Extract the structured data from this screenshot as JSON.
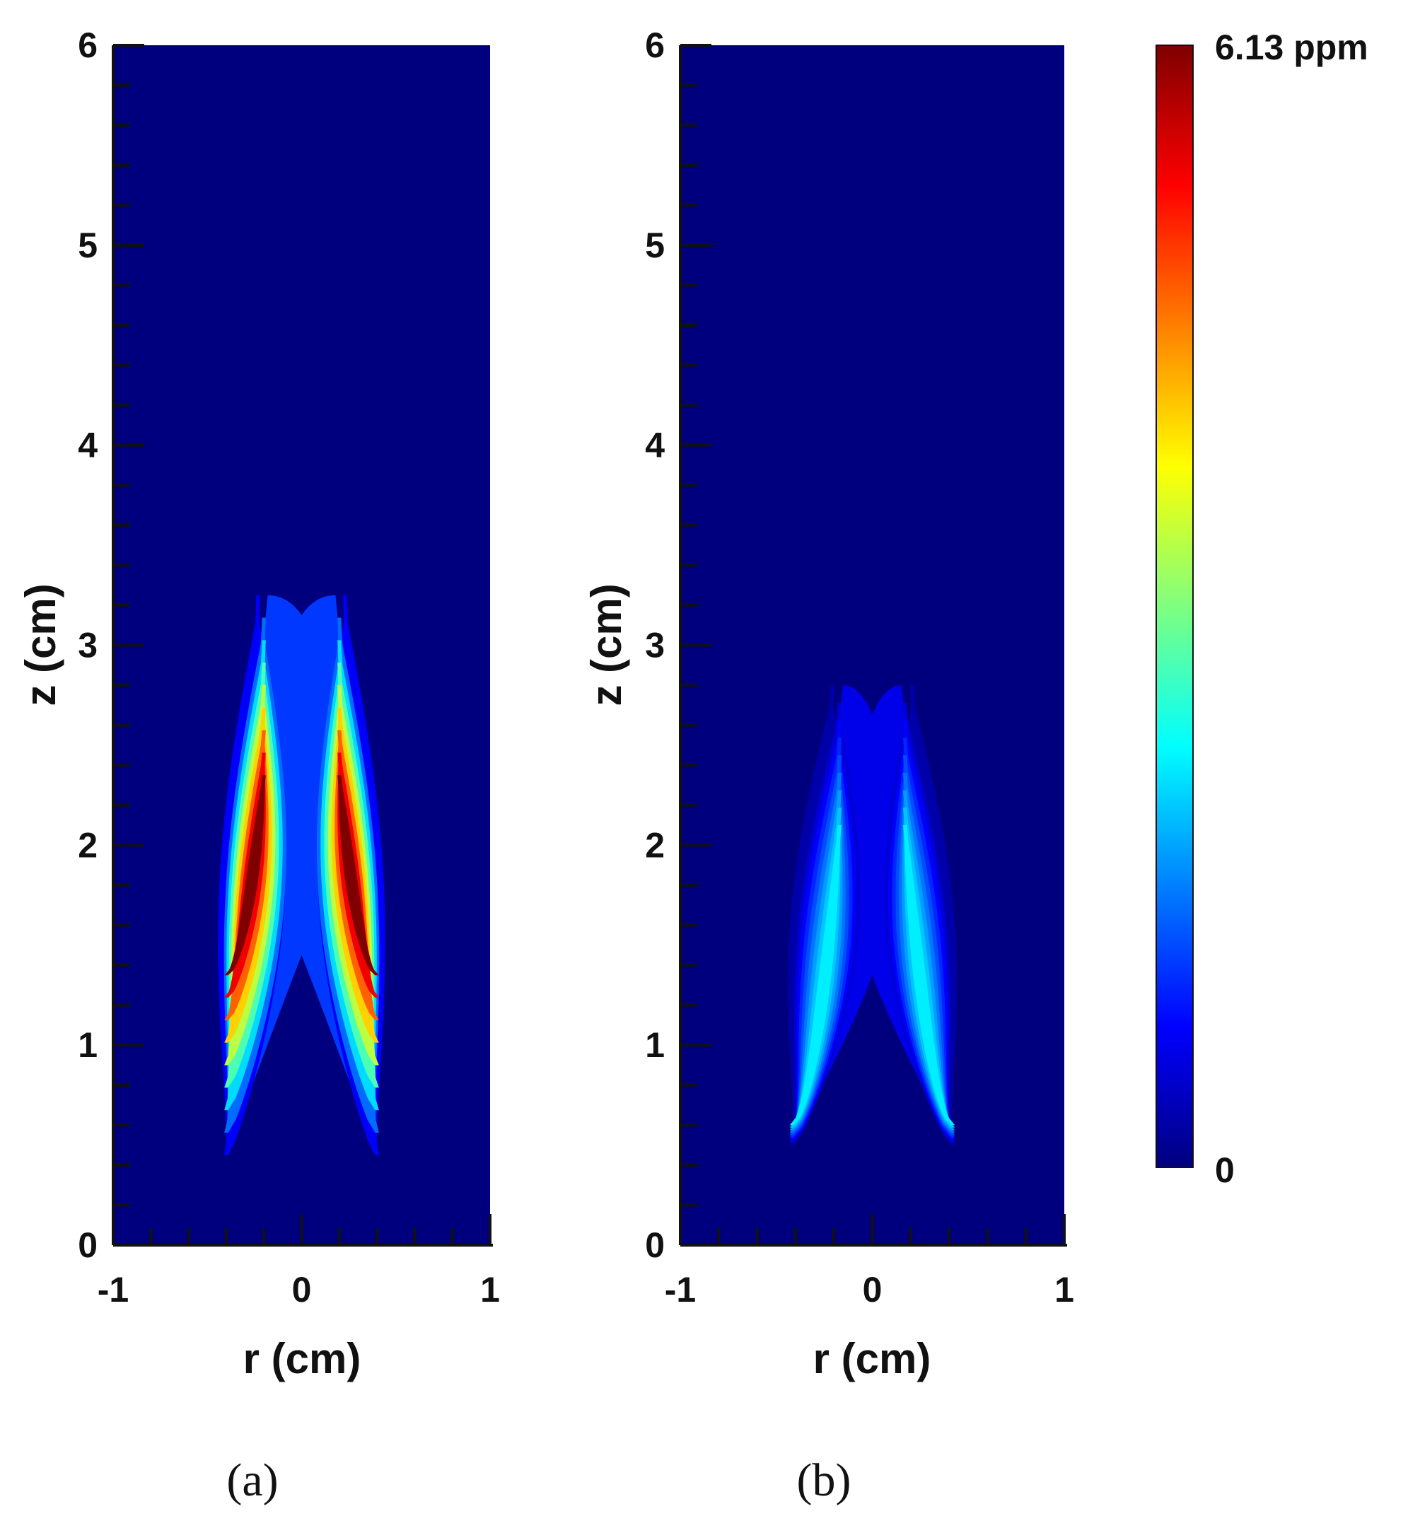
{
  "chart_data": [
    {
      "type": "heatmap",
      "panel_label": "(a)",
      "xlabel": "r (cm)",
      "ylabel": "z (cm)",
      "xlim": [
        -1,
        1
      ],
      "ylim": [
        0,
        6
      ],
      "x_ticks": [
        -1,
        0,
        1
      ],
      "y_ticks": [
        0,
        1,
        2,
        3,
        4,
        5,
        6
      ],
      "peak_ppm": 6.13,
      "plume": {
        "outer_top_z": 3.25,
        "center_dip_z": 3.15,
        "base_z": 0.45,
        "base_half_width_r": 0.4,
        "inner_gap_top_z": 1.45,
        "lobe_center_r": 0.2,
        "max_z_range": [
          1.35,
          2.35
        ]
      }
    },
    {
      "type": "heatmap",
      "panel_label": "(b)",
      "xlabel": "r (cm)",
      "ylabel": "z (cm)",
      "xlim": [
        -1,
        1
      ],
      "ylim": [
        0,
        6
      ],
      "x_ticks": [
        -1,
        0,
        1
      ],
      "y_ticks": [
        0,
        1,
        2,
        3,
        4,
        5,
        6
      ],
      "peak_ppm": 2.2,
      "plume": {
        "outer_top_z": 2.8,
        "center_dip_z": 2.65,
        "base_z": 0.5,
        "base_half_width_r": 0.42,
        "inner_gap_top_z": 1.35,
        "lobe_center_r": 0.17,
        "max_z_range": [
          0.6,
          2.1
        ]
      }
    }
  ],
  "colorbar": {
    "min_label": "0",
    "max_label": "6.13 ppm",
    "min": 0,
    "max": 6.13,
    "colormap": "jet",
    "colors": [
      "#00007f",
      "#0000ff",
      "#007fff",
      "#00ffff",
      "#7fff7f",
      "#ffff00",
      "#ff7f00",
      "#ff0000",
      "#7f0000"
    ]
  }
}
